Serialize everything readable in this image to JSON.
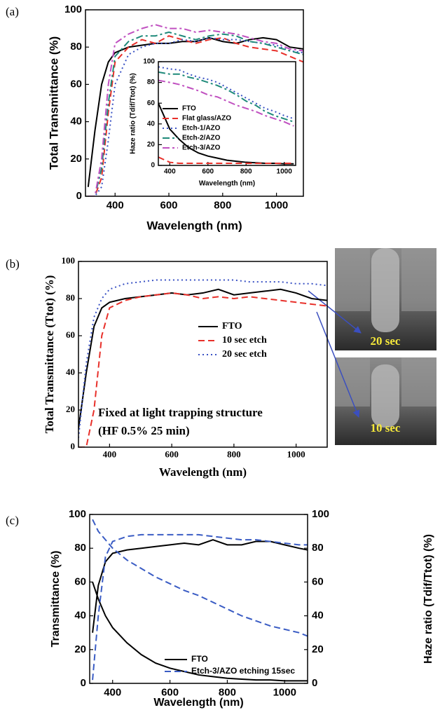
{
  "chart_data": [
    {
      "type": "line",
      "panel": "(a)",
      "xlabel": "Wavelength (nm)",
      "ylabel": "Total Transmittance (%)",
      "xlim": [
        290,
        1100
      ],
      "xticks": [
        400,
        600,
        800,
        1000
      ],
      "ylim": [
        0,
        100
      ],
      "yticks": [
        0,
        20,
        40,
        60,
        80,
        100
      ],
      "x": [
        300,
        325,
        350,
        375,
        400,
        450,
        500,
        550,
        600,
        650,
        700,
        750,
        800,
        850,
        900,
        950,
        1000,
        1050,
        1100
      ],
      "series": [
        {
          "name": "FTO",
          "color": "#000000",
          "linestyle": "solid",
          "values": [
            5,
            35,
            60,
            72,
            77,
            80,
            81,
            82,
            82,
            83,
            83,
            85,
            83,
            82,
            84,
            85,
            84,
            80,
            79
          ]
        },
        {
          "name": "Flat glass/AZO",
          "color": "#e8302a",
          "linestyle": "dashed",
          "values": [
            0,
            0,
            10,
            45,
            72,
            80,
            84,
            82,
            86,
            84,
            82,
            84,
            85,
            82,
            80,
            79,
            78,
            75,
            72
          ]
        },
        {
          "name": "Etch-1/AZO",
          "color": "#3a52c4",
          "linestyle": "dotted",
          "values": [
            0,
            0,
            5,
            30,
            60,
            76,
            80,
            82,
            82,
            84,
            83,
            85,
            84,
            84,
            83,
            82,
            81,
            78,
            77
          ]
        },
        {
          "name": "Etch-2/AZO",
          "color": "#1f8a7a",
          "linestyle": "dashdot",
          "values": [
            0,
            0,
            15,
            50,
            75,
            83,
            86,
            86,
            88,
            86,
            84,
            86,
            87,
            86,
            83,
            82,
            80,
            78,
            76
          ]
        },
        {
          "name": "Etch-3/AZO",
          "color": "#c050c0",
          "linestyle": "dashdot",
          "values": [
            0,
            0,
            20,
            60,
            82,
            87,
            90,
            92,
            90,
            90,
            88,
            89,
            88,
            87,
            85,
            83,
            82,
            79,
            78
          ]
        }
      ]
    },
    {
      "type": "line",
      "xlabel": "Wavelength (nm)",
      "ylabel": "Haze ratio (Tdif/Ttot) (%)",
      "xlim": [
        340,
        1060
      ],
      "xticks": [
        400,
        600,
        800,
        1000
      ],
      "ylim": [
        0,
        100
      ],
      "yticks": [
        0,
        20,
        40,
        60,
        80,
        100
      ],
      "x": [
        340,
        400,
        450,
        500,
        550,
        600,
        650,
        700,
        750,
        800,
        850,
        900,
        950,
        1000,
        1050
      ],
      "series": [
        {
          "name": "FTO",
          "color": "#000000",
          "linestyle": "solid",
          "values": [
            60,
            35,
            25,
            17,
            12,
            9,
            7,
            5,
            4,
            3,
            2.5,
            2,
            2,
            1.5,
            1.5
          ]
        },
        {
          "name": "Flat glass/AZO",
          "color": "#e8302a",
          "linestyle": "dashed",
          "values": [
            8,
            3,
            2,
            2,
            2,
            2,
            2,
            2,
            2,
            2,
            2,
            2,
            2,
            2,
            2
          ]
        },
        {
          "name": "Etch-1/AZO",
          "color": "#3a52c4",
          "linestyle": "dotted",
          "values": [
            95,
            93,
            92,
            88,
            85,
            83,
            80,
            75,
            70,
            65,
            60,
            55,
            52,
            48,
            45
          ]
        },
        {
          "name": "Etch-2/AZO",
          "color": "#1f8a7a",
          "linestyle": "dashdot",
          "values": [
            90,
            88,
            88,
            85,
            83,
            80,
            77,
            73,
            68,
            62,
            58,
            52,
            48,
            45,
            42
          ]
        },
        {
          "name": "Etch-3/AZO",
          "color": "#c050c0",
          "linestyle": "dashdot",
          "values": [
            82,
            80,
            78,
            75,
            72,
            68,
            66,
            62,
            58,
            55,
            52,
            48,
            45,
            42,
            38
          ]
        }
      ]
    },
    {
      "type": "line",
      "panel": "(b)",
      "xlabel": "Wavelength (nm)",
      "ylabel": "Total Transmittance (Ttot) (%)",
      "annotation": [
        "Fixed at light trapping structure",
        "(HF 0.5% 25 min)"
      ],
      "image_labels": [
        "20 sec",
        "10 sec"
      ],
      "xlim": [
        300,
        1100
      ],
      "xticks": [
        400,
        600,
        800,
        1000
      ],
      "ylim": [
        0,
        100
      ],
      "yticks": [
        0,
        20,
        40,
        60,
        80,
        100
      ],
      "x": [
        300,
        325,
        350,
        375,
        400,
        450,
        500,
        550,
        600,
        650,
        700,
        750,
        800,
        850,
        900,
        950,
        1000,
        1050,
        1100
      ],
      "series": [
        {
          "name": "FTO",
          "color": "#000000",
          "linestyle": "solid",
          "values": [
            10,
            40,
            65,
            75,
            78,
            80,
            81,
            82,
            83,
            82,
            83,
            85,
            82,
            83,
            84,
            85,
            83,
            80,
            79
          ]
        },
        {
          "name": "10 sec etch",
          "color": "#e8302a",
          "linestyle": "dashed",
          "values": [
            0,
            0,
            20,
            60,
            75,
            79,
            81,
            82,
            83,
            82,
            80,
            81,
            80,
            81,
            80,
            79,
            78,
            77,
            76
          ]
        },
        {
          "name": "20 sec etch",
          "color": "#3a52c4",
          "linestyle": "dotted",
          "values": [
            5,
            45,
            70,
            80,
            85,
            88,
            89,
            90,
            90,
            90,
            90,
            90,
            90,
            89,
            89,
            89,
            88,
            88,
            87
          ]
        }
      ]
    },
    {
      "type": "line",
      "panel": "(c)",
      "xlabel": "Wavelength (nm)",
      "ylabel": "Transmittance (%)",
      "y2label": "Haze ratio (Tdif/Ttot) (%)",
      "xlim": [
        320,
        1080
      ],
      "xticks": [
        400,
        600,
        800,
        1000
      ],
      "ylim": [
        0,
        100
      ],
      "yticks": [
        0,
        20,
        40,
        60,
        80,
        100
      ],
      "y2lim": [
        0,
        100
      ],
      "y2ticks": [
        0,
        20,
        40,
        60,
        80,
        100
      ],
      "x": [
        330,
        350,
        375,
        400,
        450,
        500,
        550,
        600,
        650,
        700,
        750,
        800,
        850,
        900,
        950,
        1000,
        1050,
        1080
      ],
      "series": [
        {
          "name": "FTO",
          "color": "#000000",
          "linestyle": "solid",
          "values": [
            30,
            58,
            72,
            77,
            79,
            80,
            81,
            82,
            83,
            82,
            85,
            82,
            82,
            84,
            84,
            82,
            80,
            79
          ]
        },
        {
          "color": "#000000",
          "linestyle": "solid",
          "axis": "y2",
          "values": [
            60,
            50,
            40,
            33,
            24,
            17,
            12,
            9,
            7,
            5,
            4,
            3,
            2.5,
            2,
            2,
            1.5,
            1.5,
            1.5
          ]
        },
        {
          "name": "Etch-3/AZO etching 15sec",
          "color": "#3a5cc4",
          "linestyle": "dashed",
          "values": [
            2,
            40,
            75,
            84,
            87,
            88,
            88,
            88,
            88,
            88,
            87,
            86,
            85,
            85,
            84,
            83,
            82,
            82
          ]
        },
        {
          "color": "#3a5cc4",
          "linestyle": "dashed",
          "axis": "y2",
          "values": [
            97,
            90,
            85,
            80,
            73,
            68,
            63,
            59,
            55,
            52,
            48,
            44,
            40,
            37,
            34,
            32,
            30,
            28
          ]
        }
      ]
    }
  ]
}
